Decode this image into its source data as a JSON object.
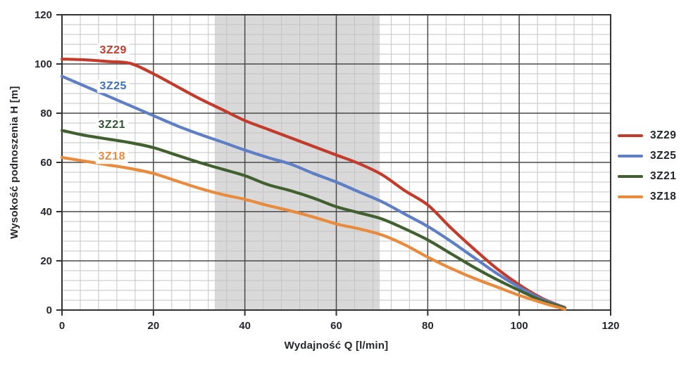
{
  "chart_data": {
    "type": "line",
    "title": "",
    "xlabel": "Wydajność Q [l/min]",
    "ylabel": "Wysokość podnoszenia H [m]",
    "xlim": [
      0,
      120
    ],
    "ylim": [
      0,
      120
    ],
    "x_ticks": [
      0,
      20,
      40,
      60,
      80,
      100,
      120
    ],
    "y_ticks": [
      0,
      20,
      40,
      60,
      80,
      100,
      120
    ],
    "minor_grid_step": 4,
    "grid": "major+minor",
    "legend_position": "right",
    "shaded_region": {
      "x_start": 33.4,
      "x_end": 69.5,
      "color": "#d9d9d9"
    },
    "colors": {
      "text": "#26282e",
      "major_grid": "#4a4a4a",
      "minor_grid": "#c3c3c3",
      "frame": "#333333",
      "band": "#d9d9d9"
    },
    "series": [
      {
        "name": "3Z29",
        "color": "#c23b2b",
        "label_color": "#c23b2b",
        "label_pos": {
          "x": 11.2,
          "y": 105.4
        },
        "points": [
          [
            0,
            102
          ],
          [
            5,
            101.7
          ],
          [
            10,
            101
          ],
          [
            15,
            100.2
          ],
          [
            20,
            96
          ],
          [
            25,
            91
          ],
          [
            30,
            86
          ],
          [
            35,
            81.5
          ],
          [
            40,
            77
          ],
          [
            45,
            73.5
          ],
          [
            50,
            70
          ],
          [
            55,
            66.5
          ],
          [
            60,
            63
          ],
          [
            65,
            59.5
          ],
          [
            70,
            55
          ],
          [
            75,
            48.5
          ],
          [
            80,
            42.7
          ],
          [
            85,
            33.5
          ],
          [
            90,
            25
          ],
          [
            95,
            17
          ],
          [
            100,
            10.3
          ],
          [
            105,
            4.8
          ],
          [
            110,
            1
          ]
        ]
      },
      {
        "name": "3Z25",
        "color": "#5e7ec6",
        "label_color": "#3e6fc1",
        "label_pos": {
          "x": 11.2,
          "y": 90.9
        },
        "points": [
          [
            0,
            95
          ],
          [
            5,
            91
          ],
          [
            10,
            87
          ],
          [
            15,
            83
          ],
          [
            20,
            79
          ],
          [
            25,
            75
          ],
          [
            30,
            71.5
          ],
          [
            35,
            68.3
          ],
          [
            40,
            65
          ],
          [
            45,
            62
          ],
          [
            50,
            59.3
          ],
          [
            55,
            55.5
          ],
          [
            60,
            52
          ],
          [
            65,
            48
          ],
          [
            70,
            44
          ],
          [
            75,
            39
          ],
          [
            80,
            34
          ],
          [
            85,
            28
          ],
          [
            90,
            21.5
          ],
          [
            95,
            15
          ],
          [
            100,
            9.3
          ],
          [
            105,
            4.4
          ],
          [
            110,
            0.9
          ]
        ]
      },
      {
        "name": "3Z21",
        "color": "#41602f",
        "label_color": "#2f5733",
        "label_pos": {
          "x": 10.9,
          "y": 75.1
        },
        "points": [
          [
            0,
            73
          ],
          [
            5,
            71
          ],
          [
            10,
            69.5
          ],
          [
            15,
            68
          ],
          [
            20,
            66
          ],
          [
            25,
            63
          ],
          [
            30,
            60
          ],
          [
            35,
            57.3
          ],
          [
            40,
            54.6
          ],
          [
            45,
            51
          ],
          [
            50,
            48.5
          ],
          [
            55,
            45.5
          ],
          [
            60,
            42
          ],
          [
            65,
            39.5
          ],
          [
            70,
            37
          ],
          [
            75,
            33
          ],
          [
            80,
            28.5
          ],
          [
            85,
            23
          ],
          [
            90,
            17.5
          ],
          [
            95,
            12.5
          ],
          [
            100,
            8
          ],
          [
            105,
            3.8
          ],
          [
            110,
            0.8
          ]
        ]
      },
      {
        "name": "3Z18",
        "color": "#e98b3d",
        "label_color": "#ed8b3d",
        "label_pos": {
          "x": 10.9,
          "y": 62.3
        },
        "points": [
          [
            0,
            62
          ],
          [
            5,
            60.5
          ],
          [
            10,
            59
          ],
          [
            15,
            57.5
          ],
          [
            20,
            55.5
          ],
          [
            25,
            52.5
          ],
          [
            30,
            49.5
          ],
          [
            35,
            47
          ],
          [
            40,
            45
          ],
          [
            45,
            42.5
          ],
          [
            50,
            40.3
          ],
          [
            55,
            37.8
          ],
          [
            60,
            35
          ],
          [
            65,
            33
          ],
          [
            70,
            30.5
          ],
          [
            75,
            26.5
          ],
          [
            80,
            21.5
          ],
          [
            85,
            17
          ],
          [
            90,
            13
          ],
          [
            95,
            9.5
          ],
          [
            100,
            6
          ],
          [
            105,
            3
          ],
          [
            110,
            0.3
          ]
        ]
      }
    ],
    "legend": [
      "3Z29",
      "3Z25",
      "3Z21",
      "3Z18"
    ]
  }
}
